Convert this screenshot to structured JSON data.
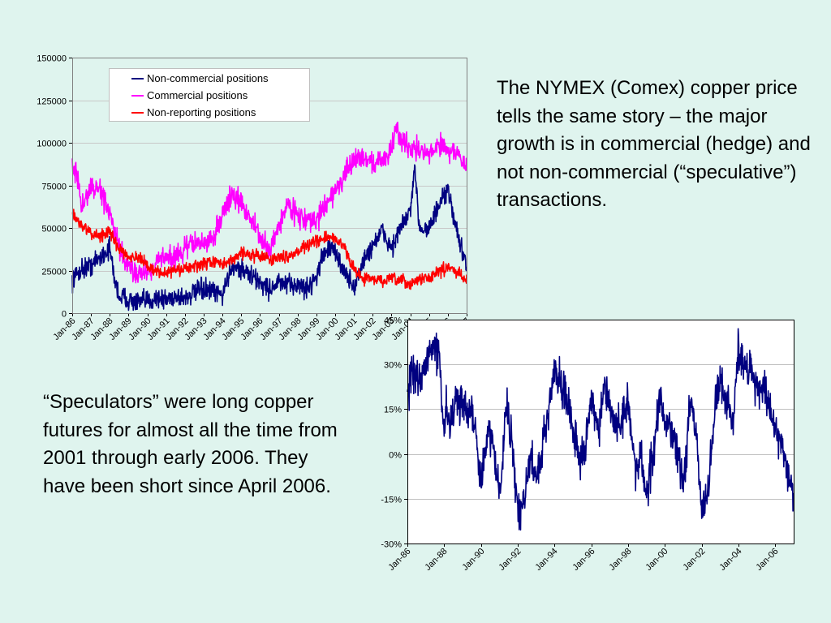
{
  "text_blocks": {
    "right": "The NYMEX (Comex) copper price tells the same story – the major growth is in commercial (hedge) and not non-commercial (“speculative”) transactions.",
    "left": "“Speculators” were long copper futures for almost all the time from 2001 through early 2006. They have been short since April 2006."
  },
  "colors": {
    "background": "#dff4ee",
    "non_commercial": "#000080",
    "commercial": "#ff00ff",
    "non_reporting": "#ff0000",
    "net_position": "#000080"
  },
  "chart_data": [
    {
      "type": "line",
      "title": "",
      "xlabel": "",
      "ylabel": "",
      "xlim": [
        1986.0,
        2007.0
      ],
      "ylim": [
        0,
        150000
      ],
      "y_ticks": [
        "0",
        "25000",
        "50000",
        "75000",
        "100000",
        "125000",
        "150000"
      ],
      "x_ticks": [
        "Jan-86",
        "Jan-87",
        "Jan-88",
        "Jan-89",
        "Jan-90",
        "Jan-91",
        "Jan-92",
        "Jan-93",
        "Jan-94",
        "Jan-95",
        "Jan-96",
        "Jan-97",
        "Jan-98",
        "Jan-99",
        "Jan-00",
        "Jan-01",
        "Jan-02",
        "Jan-03",
        "Jan-04",
        "Jan-05",
        "Jan-06",
        "Jan-07"
      ],
      "grid": "horizontal",
      "legend_position": "top-left",
      "series": [
        {
          "name": "Non-commercial positions",
          "color": "#000080",
          "x": [
            1986.0,
            1986.5,
            1987.0,
            1987.5,
            1988.0,
            1988.25,
            1988.5,
            1989.0,
            1989.5,
            1990.0,
            1990.5,
            1991.0,
            1991.5,
            1992.0,
            1992.5,
            1993.0,
            1993.5,
            1994.0,
            1994.5,
            1995.0,
            1995.5,
            1996.0,
            1996.5,
            1997.0,
            1997.5,
            1998.0,
            1998.5,
            1999.0,
            1999.5,
            2000.0,
            2000.5,
            2001.0,
            2001.5,
            2002.0,
            2002.5,
            2003.0,
            2003.5,
            2004.0,
            2004.25,
            2004.5,
            2005.0,
            2005.5,
            2006.0,
            2006.5,
            2007.0
          ],
          "values": [
            20000,
            26000,
            28000,
            33000,
            38000,
            20000,
            10000,
            8000,
            6000,
            7000,
            9000,
            8000,
            10000,
            9000,
            12000,
            14000,
            12000,
            11000,
            28000,
            26000,
            22000,
            18000,
            14000,
            18000,
            16000,
            17000,
            14000,
            22000,
            38000,
            36000,
            24000,
            15000,
            30000,
            40000,
            48000,
            38000,
            50000,
            60000,
            83000,
            50000,
            50000,
            62000,
            72000,
            48000,
            25000
          ],
          "noise": 6000
        },
        {
          "name": "Commercial positions",
          "color": "#ff00ff",
          "x": [
            1986.0,
            1986.25,
            1986.5,
            1987.0,
            1987.5,
            1988.0,
            1988.5,
            1989.0,
            1989.5,
            1990.0,
            1990.5,
            1991.0,
            1991.5,
            1992.0,
            1992.5,
            1993.0,
            1993.5,
            1994.0,
            1994.5,
            1995.0,
            1995.5,
            1996.0,
            1996.5,
            1997.0,
            1997.5,
            1998.0,
            1998.5,
            1999.0,
            1999.5,
            2000.0,
            2000.5,
            2001.0,
            2001.5,
            2002.0,
            2002.5,
            2003.0,
            2003.25,
            2003.5,
            2004.0,
            2004.5,
            2005.0,
            2005.5,
            2006.0,
            2006.5,
            2007.0
          ],
          "values": [
            90000,
            80000,
            62000,
            74000,
            72000,
            58000,
            38000,
            26000,
            24000,
            24000,
            30000,
            34000,
            32000,
            38000,
            42000,
            40000,
            44000,
            58000,
            70000,
            64000,
            56000,
            44000,
            36000,
            52000,
            64000,
            58000,
            54000,
            54000,
            64000,
            72000,
            80000,
            90000,
            92000,
            88000,
            90000,
            96000,
            108000,
            102000,
            98000,
            96000,
            92000,
            100000,
            96000,
            94000,
            84000
          ],
          "noise": 6500
        },
        {
          "name": "Non-reporting positions",
          "color": "#ff0000",
          "x": [
            1986.0,
            1986.5,
            1987.0,
            1987.5,
            1988.0,
            1988.5,
            1989.0,
            1989.5,
            1990.0,
            1990.5,
            1991.0,
            1991.5,
            1992.0,
            1992.5,
            1993.0,
            1993.5,
            1994.0,
            1994.5,
            1995.0,
            1995.5,
            1996.0,
            1996.5,
            1997.0,
            1997.5,
            1998.0,
            1998.5,
            1999.0,
            1999.5,
            2000.0,
            2000.5,
            2001.0,
            2001.5,
            2002.0,
            2002.5,
            2003.0,
            2003.5,
            2004.0,
            2004.5,
            2005.0,
            2005.5,
            2006.0,
            2006.5,
            2007.0
          ],
          "values": [
            58000,
            52000,
            46000,
            46000,
            47000,
            38000,
            34000,
            32000,
            28000,
            24000,
            24000,
            25000,
            26000,
            27000,
            29000,
            30000,
            29000,
            30000,
            36000,
            34000,
            34000,
            32000,
            32000,
            34000,
            36000,
            40000,
            42000,
            44000,
            44000,
            38000,
            26000,
            20000,
            20000,
            19000,
            20000,
            19000,
            17000,
            20000,
            21000,
            24000,
            27000,
            24000,
            20000
          ],
          "noise": 3500
        }
      ]
    },
    {
      "type": "line",
      "title": "",
      "xlabel": "",
      "ylabel": "",
      "xlim": [
        1986.0,
        2007.0
      ],
      "ylim": [
        -0.3,
        0.45
      ],
      "y_ticks": [
        "-30%",
        "-15%",
        "0%",
        "15%",
        "30%",
        "45%"
      ],
      "x_ticks": [
        "Jan-86",
        "Jan-88",
        "Jan-90",
        "Jan-92",
        "Jan-94",
        "Jan-96",
        "Jan-98",
        "Jan-00",
        "Jan-02",
        "Jan-04",
        "Jan-06"
      ],
      "grid": "horizontal",
      "series": [
        {
          "name": "",
          "color": "#000080",
          "x": [
            1986.0,
            1986.3,
            1986.7,
            1987.0,
            1987.3,
            1987.7,
            1988.0,
            1988.1,
            1988.4,
            1988.7,
            1989.0,
            1989.4,
            1989.7,
            1990.0,
            1990.2,
            1990.4,
            1990.7,
            1991.0,
            1991.4,
            1991.7,
            1992.0,
            1992.3,
            1992.7,
            1993.0,
            1993.4,
            1993.7,
            1994.0,
            1994.4,
            1994.7,
            1995.0,
            1995.4,
            1995.7,
            1996.0,
            1996.4,
            1996.7,
            1997.0,
            1997.4,
            1997.7,
            1998.0,
            1998.4,
            1998.7,
            1999.0,
            1999.4,
            1999.7,
            2000.0,
            2000.4,
            2000.7,
            2001.0,
            2001.4,
            2001.7,
            2002.0,
            2002.4,
            2002.7,
            2003.0,
            2003.4,
            2003.7,
            2004.0,
            2004.3,
            2004.6,
            2005.0,
            2005.4,
            2005.7,
            2006.0,
            2006.4,
            2006.8,
            2007.0
          ],
          "values": [
            0.22,
            0.27,
            0.24,
            0.3,
            0.37,
            0.33,
            0.08,
            0.14,
            0.12,
            0.2,
            0.15,
            0.16,
            0.1,
            -0.1,
            -0.02,
            0.08,
            0.02,
            -0.12,
            0.16,
            0.04,
            -0.2,
            -0.18,
            0.0,
            -0.1,
            0.05,
            0.15,
            0.3,
            0.22,
            0.18,
            0.1,
            -0.02,
            0.02,
            0.2,
            0.06,
            0.22,
            0.15,
            0.08,
            0.12,
            0.18,
            -0.06,
            0.0,
            -0.14,
            0.02,
            0.2,
            0.12,
            0.05,
            0.0,
            -0.1,
            0.18,
            0.06,
            -0.2,
            -0.1,
            0.16,
            0.24,
            0.18,
            0.1,
            0.36,
            0.28,
            0.3,
            0.22,
            0.22,
            0.15,
            0.08,
            0.03,
            -0.08,
            -0.15
          ],
          "noise": 0.065
        }
      ]
    }
  ]
}
